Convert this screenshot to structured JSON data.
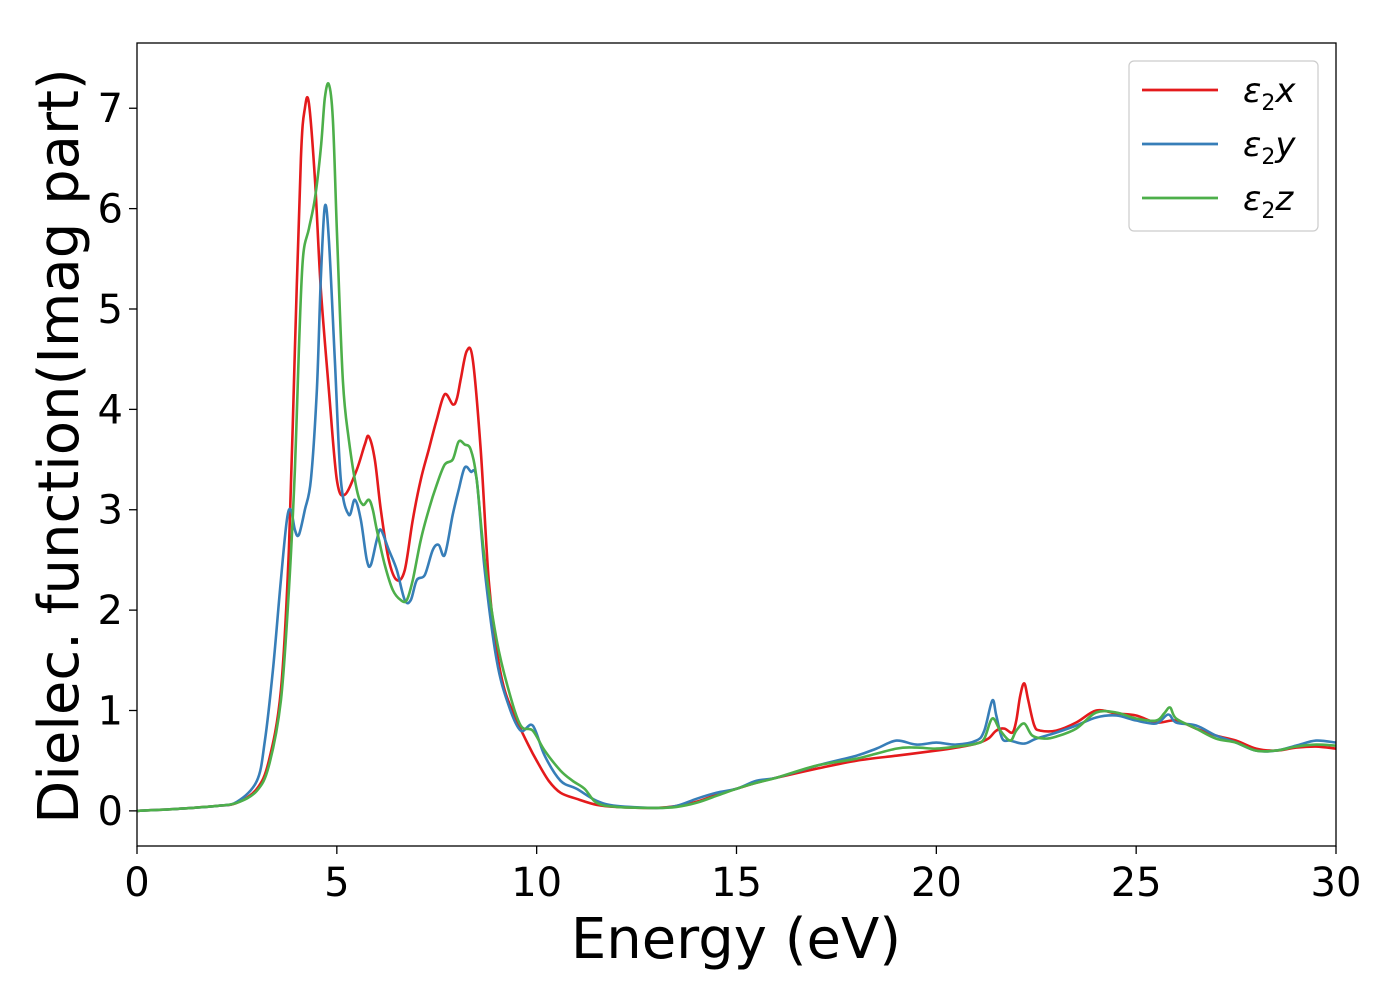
{
  "chart_data": {
    "type": "line",
    "title": "",
    "xlabel": "Energy (eV)",
    "ylabel": "Dielec. function(Imag part)",
    "xlim": [
      0,
      30
    ],
    "ylim": [
      -0.35,
      7.65
    ],
    "xticks": [
      0,
      5,
      10,
      15,
      20,
      25,
      30
    ],
    "yticks": [
      0,
      1,
      2,
      3,
      4,
      5,
      6,
      7
    ],
    "grid": false,
    "legend_position": "top-right",
    "series": [
      {
        "name": "ε2x",
        "legend": {
          "base": "ε",
          "sub": "2",
          "tail": "x"
        },
        "color": "#e41a1c",
        "x": [
          0,
          1,
          2,
          2.5,
          3,
          3.3,
          3.6,
          3.8,
          3.95,
          4.1,
          4.2,
          4.3,
          4.45,
          4.6,
          4.8,
          5.0,
          5.2,
          5.5,
          5.7,
          5.8,
          5.95,
          6.1,
          6.3,
          6.5,
          6.7,
          6.9,
          7.1,
          7.3,
          7.5,
          7.7,
          7.9,
          8.0,
          8.1,
          8.25,
          8.4,
          8.6,
          8.8,
          9.0,
          9.2,
          9.5,
          9.8,
          10.0,
          10.3,
          10.6,
          11.0,
          11.5,
          12,
          13,
          13.5,
          14,
          14.5,
          15,
          15.5,
          16,
          17,
          18,
          19,
          20,
          20.5,
          21,
          21.3,
          21.5,
          21.7,
          21.9,
          22.0,
          22.1,
          22.2,
          22.3,
          22.45,
          22.6,
          23,
          23.5,
          24,
          24.5,
          25,
          25.5,
          26,
          26.5,
          27,
          27.5,
          28,
          28.5,
          29,
          29.5,
          30
        ],
        "y": [
          0,
          0.02,
          0.05,
          0.08,
          0.22,
          0.5,
          1.2,
          2.6,
          4.6,
          6.5,
          7.0,
          7.05,
          6.3,
          5.2,
          4.2,
          3.3,
          3.15,
          3.4,
          3.65,
          3.73,
          3.5,
          3.0,
          2.5,
          2.3,
          2.4,
          2.9,
          3.3,
          3.6,
          3.9,
          4.15,
          4.05,
          4.1,
          4.3,
          4.58,
          4.5,
          3.6,
          2.3,
          1.6,
          1.2,
          0.9,
          0.65,
          0.5,
          0.3,
          0.18,
          0.12,
          0.06,
          0.04,
          0.03,
          0.05,
          0.09,
          0.16,
          0.22,
          0.28,
          0.33,
          0.42,
          0.5,
          0.55,
          0.6,
          0.63,
          0.67,
          0.72,
          0.8,
          0.82,
          0.78,
          0.9,
          1.15,
          1.27,
          1.1,
          0.85,
          0.8,
          0.8,
          0.88,
          1.0,
          0.97,
          0.95,
          0.88,
          0.9,
          0.82,
          0.75,
          0.7,
          0.62,
          0.6,
          0.63,
          0.64,
          0.62
        ]
      },
      {
        "name": "ε2y",
        "legend": {
          "base": "ε",
          "sub": "2",
          "tail": "y"
        },
        "color": "#377eb8",
        "x": [
          0,
          1,
          2,
          2.5,
          3,
          3.2,
          3.4,
          3.6,
          3.75,
          3.85,
          3.95,
          4.05,
          4.2,
          4.35,
          4.5,
          4.6,
          4.7,
          4.8,
          4.95,
          5.1,
          5.3,
          5.45,
          5.6,
          5.75,
          5.85,
          6.0,
          6.1,
          6.3,
          6.5,
          6.7,
          6.85,
          7.0,
          7.2,
          7.4,
          7.55,
          7.7,
          7.9,
          8.05,
          8.2,
          8.35,
          8.5,
          8.7,
          9.0,
          9.3,
          9.6,
          9.9,
          10.2,
          10.6,
          11,
          11.5,
          12,
          13,
          13.5,
          14,
          14.5,
          15,
          15.5,
          16,
          17,
          18,
          18.5,
          19,
          19.5,
          20,
          20.5,
          21,
          21.2,
          21.4,
          21.5,
          21.65,
          21.85,
          22.2,
          22.5,
          23,
          23.5,
          24,
          24.5,
          25,
          25.5,
          25.8,
          26,
          26.5,
          27,
          27.5,
          28,
          28.5,
          29,
          29.5,
          30
        ],
        "y": [
          0,
          0.02,
          0.05,
          0.09,
          0.3,
          0.7,
          1.4,
          2.3,
          2.9,
          3.0,
          2.8,
          2.75,
          3.0,
          3.3,
          4.2,
          5.3,
          6.02,
          5.7,
          4.5,
          3.3,
          2.95,
          3.1,
          2.9,
          2.5,
          2.45,
          2.7,
          2.8,
          2.6,
          2.4,
          2.1,
          2.1,
          2.3,
          2.35,
          2.6,
          2.65,
          2.55,
          2.95,
          3.2,
          3.42,
          3.38,
          3.3,
          2.4,
          1.5,
          1.05,
          0.8,
          0.85,
          0.55,
          0.3,
          0.22,
          0.1,
          0.05,
          0.03,
          0.05,
          0.12,
          0.18,
          0.22,
          0.3,
          0.33,
          0.45,
          0.55,
          0.62,
          0.7,
          0.66,
          0.68,
          0.66,
          0.7,
          0.8,
          1.1,
          0.95,
          0.72,
          0.7,
          0.67,
          0.72,
          0.78,
          0.85,
          0.93,
          0.95,
          0.9,
          0.87,
          0.96,
          0.88,
          0.85,
          0.75,
          0.68,
          0.6,
          0.6,
          0.65,
          0.7,
          0.68
        ]
      },
      {
        "name": "ε2z",
        "legend": {
          "base": "ε",
          "sub": "2",
          "tail": "z"
        },
        "color": "#4daf4a",
        "x": [
          0,
          1,
          2,
          2.5,
          3,
          3.3,
          3.6,
          3.8,
          3.95,
          4.05,
          4.15,
          4.3,
          4.45,
          4.6,
          4.7,
          4.8,
          4.9,
          5.0,
          5.15,
          5.3,
          5.5,
          5.65,
          5.8,
          5.9,
          6.0,
          6.2,
          6.4,
          6.6,
          6.75,
          6.9,
          7.1,
          7.3,
          7.5,
          7.7,
          7.9,
          8.05,
          8.2,
          8.35,
          8.5,
          8.7,
          9.0,
          9.3,
          9.6,
          9.9,
          10.2,
          10.6,
          10.9,
          11.2,
          11.5,
          12,
          13,
          13.5,
          14,
          14.5,
          15,
          15.5,
          16,
          17,
          18,
          19,
          19.5,
          20,
          20.5,
          21,
          21.2,
          21.4,
          21.6,
          21.85,
          22.0,
          22.2,
          22.4,
          22.7,
          23,
          23.5,
          24,
          24.5,
          25,
          25.5,
          25.7,
          25.85,
          26,
          26.5,
          27,
          27.5,
          28,
          28.5,
          29,
          29.5,
          30
        ],
        "y": [
          0,
          0.02,
          0.05,
          0.08,
          0.2,
          0.45,
          1.1,
          2.2,
          3.4,
          4.6,
          5.5,
          5.8,
          6.1,
          6.6,
          7.1,
          7.24,
          6.9,
          5.8,
          4.3,
          3.7,
          3.2,
          3.05,
          3.1,
          3.0,
          2.8,
          2.45,
          2.2,
          2.1,
          2.1,
          2.3,
          2.7,
          3.0,
          3.25,
          3.45,
          3.5,
          3.68,
          3.65,
          3.6,
          3.3,
          2.5,
          1.7,
          1.2,
          0.85,
          0.8,
          0.6,
          0.4,
          0.3,
          0.22,
          0.08,
          0.04,
          0.03,
          0.04,
          0.08,
          0.15,
          0.22,
          0.28,
          0.33,
          0.45,
          0.52,
          0.62,
          0.63,
          0.62,
          0.64,
          0.67,
          0.72,
          0.92,
          0.8,
          0.7,
          0.8,
          0.87,
          0.75,
          0.72,
          0.74,
          0.82,
          0.98,
          0.98,
          0.92,
          0.9,
          0.97,
          1.03,
          0.92,
          0.82,
          0.72,
          0.68,
          0.6,
          0.6,
          0.64,
          0.66,
          0.65
        ]
      }
    ]
  }
}
